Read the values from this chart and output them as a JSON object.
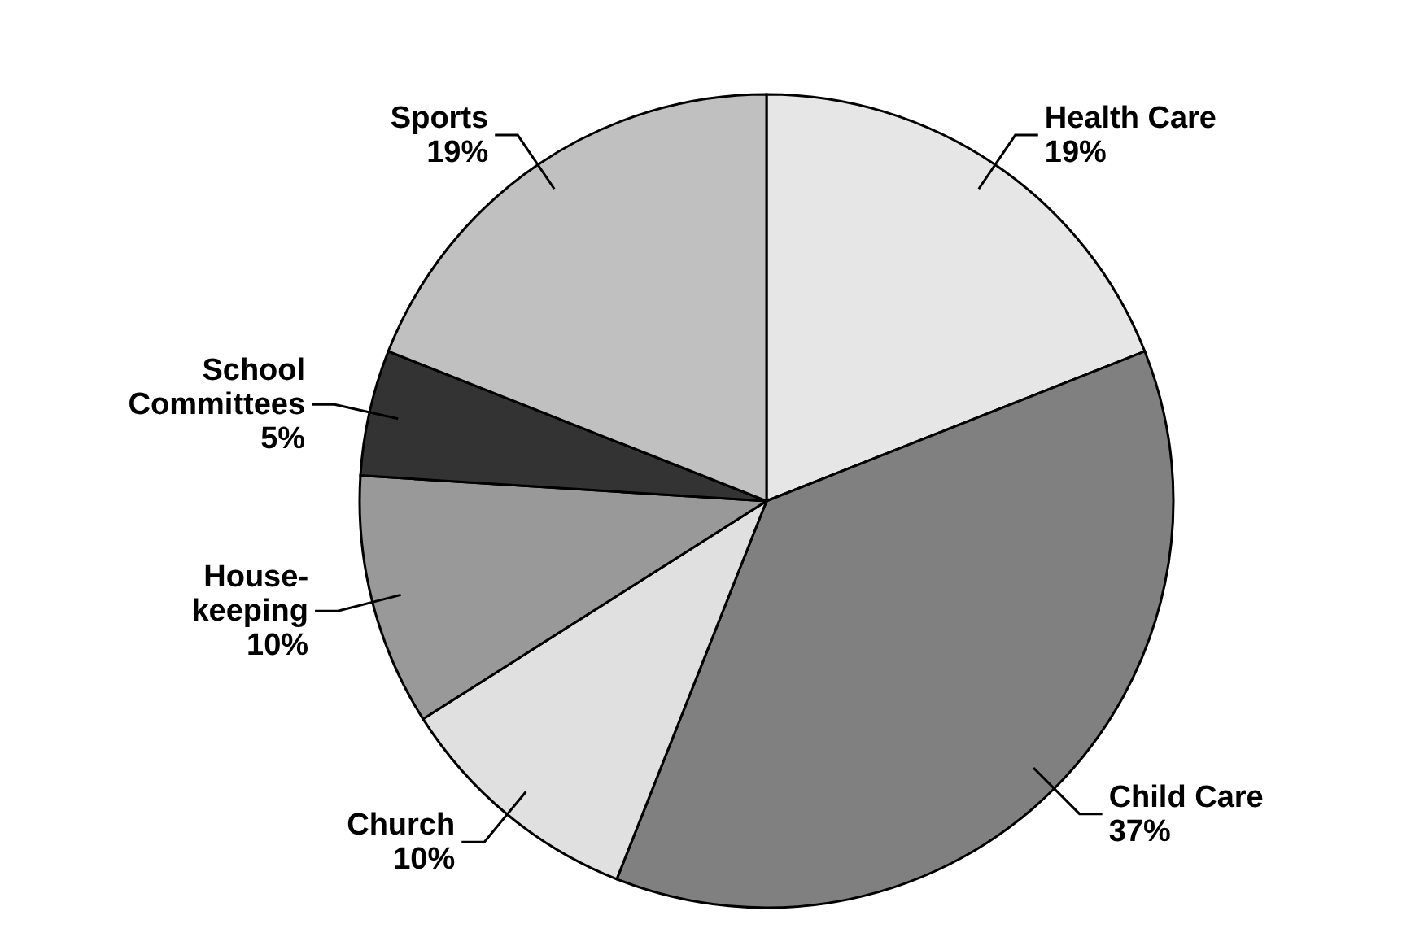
{
  "chart_data": {
    "type": "pie",
    "categories": [
      "Health Care",
      "Child Care",
      "Church",
      "House-keeping",
      "School Committees",
      "Sports"
    ],
    "values": [
      19,
      37,
      10,
      10,
      5,
      19
    ],
    "value_labels": [
      "19%",
      "37%",
      "10%",
      "10%",
      "5%",
      "19%"
    ],
    "colors": [
      "#e6e6e6",
      "#808080",
      "#e0e0e0",
      "#999999",
      "#333333",
      "#c0c0c0"
    ],
    "legend": false
  }
}
